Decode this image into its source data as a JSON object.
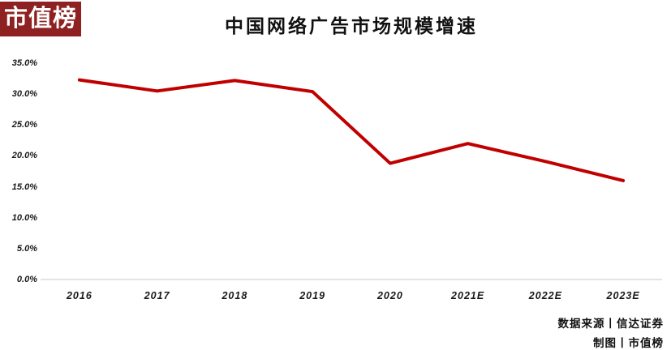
{
  "logo": {
    "text": "市值榜",
    "bg_color": "#8e2121",
    "text_color": "#ffffff"
  },
  "title": "中国网络广告市场规模增速",
  "footer": {
    "source": "数据来源丨信达证券",
    "credit": "制图丨市值榜"
  },
  "chart_data": {
    "type": "line",
    "title": "中国网络广告市场规模增速",
    "categories": [
      "2016",
      "2017",
      "2018",
      "2019",
      "2020",
      "2021E",
      "2022E",
      "2023E"
    ],
    "values": [
      32.3,
      30.5,
      32.2,
      30.4,
      18.8,
      22.0,
      19.1,
      16.0
    ],
    "unit": "%",
    "xlabel": "",
    "ylabel": "",
    "ylim": [
      0,
      35
    ],
    "ytick_step": 5,
    "ytick_labels": [
      "0.0%",
      "5.0%",
      "10.0%",
      "15.0%",
      "20.0%",
      "25.0%",
      "30.0%",
      "35.0%"
    ],
    "grid": false,
    "legend": "none",
    "line_color": "#c00000",
    "line_width": 4,
    "axis_line_color": "#e4e4e4"
  }
}
